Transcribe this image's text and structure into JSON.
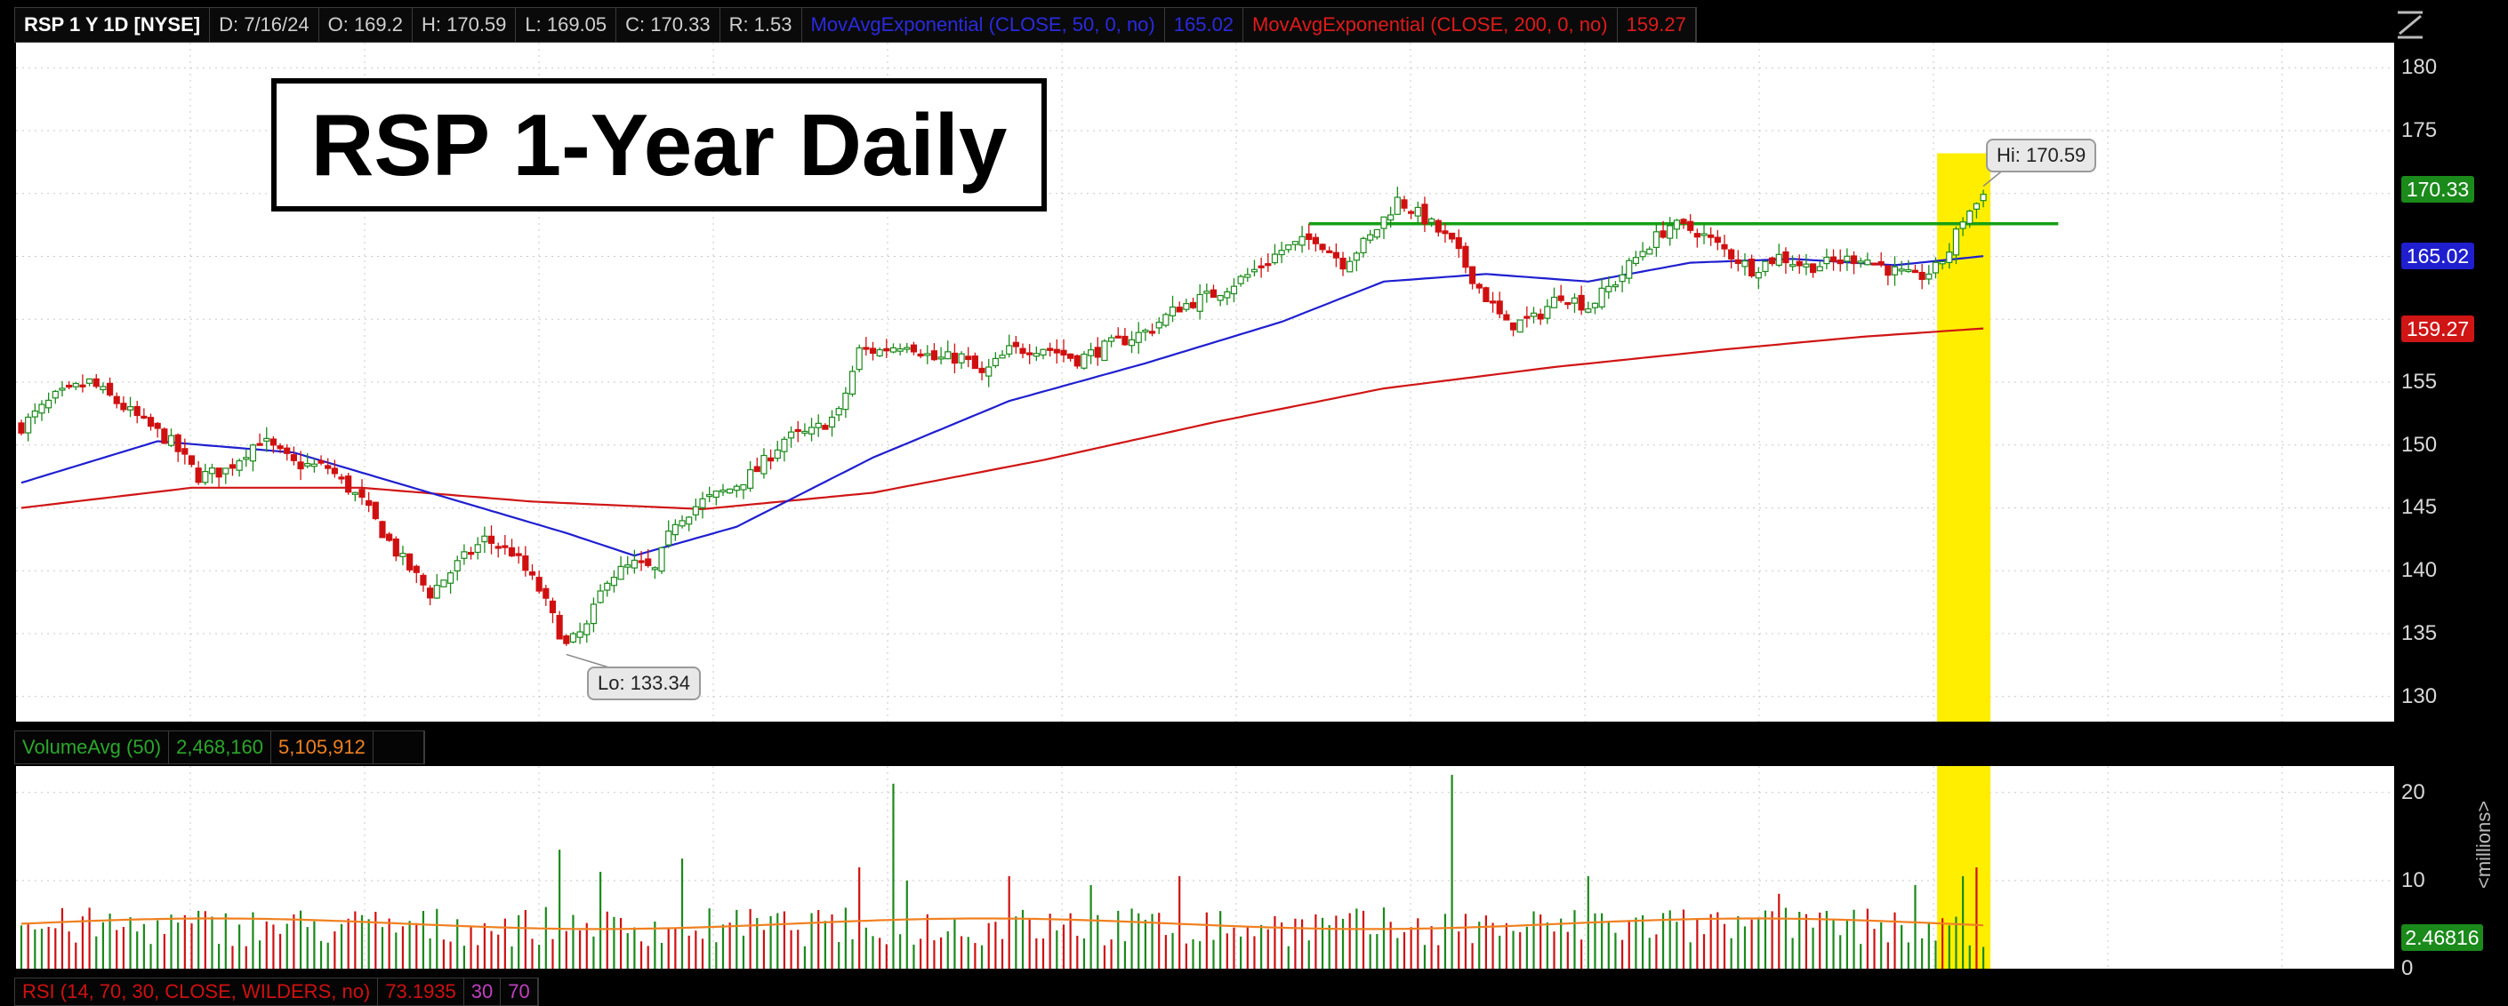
{
  "header": {
    "symbol": "RSP 1 Y 1D [NYSE]",
    "date": "D: 7/16/24",
    "open": "O: 169.2",
    "high": "H: 170.59",
    "low": "L: 169.05",
    "close": "C: 170.33",
    "range": "R: 1.53",
    "ema50_label": "MovAvgExponential (CLOSE, 50, 0, no)",
    "ema50_value": "165.02",
    "ema200_label": "MovAvgExponential (CLOSE, 200, 0, no)",
    "ema200_value": "159.27"
  },
  "title_box": "RSP 1-Year Daily",
  "annotations": {
    "hi": "Hi: 170.59",
    "lo": "Lo: 133.34"
  },
  "price_axis": {
    "ticks": [
      "180",
      "175",
      "170",
      "165",
      "155",
      "150",
      "145",
      "140",
      "135",
      "130"
    ],
    "tags": {
      "close": "170.33",
      "ema50": "165.02",
      "ema200": "159.27"
    }
  },
  "volume_header": {
    "label": "VolumeAvg (50)",
    "volume": "2,468,160",
    "avg": "5,105,912"
  },
  "volume_axis": {
    "ticks": [
      "20",
      "10",
      "0"
    ],
    "tag": "2.46816",
    "unit": "<millions>"
  },
  "rsi_header": {
    "label": "RSI (14, 70, 30, CLOSE, WILDERS, no)",
    "value": "73.1935",
    "oversold": "30",
    "overbought": "70"
  },
  "colors": {
    "up": "#1a8a1a",
    "down": "#d01010",
    "ema50": "#1f1fd0",
    "ema200": "#d01515",
    "resistance": "#14a014",
    "highlight": "#ffee00",
    "vol_avg": "#f08020"
  },
  "chart_data": [
    {
      "type": "candlestick",
      "title": "RSP 1-Year Daily",
      "ylim": [
        128,
        182
      ],
      "grid": true,
      "close_path": [
        {
          "i": 0,
          "c": 151.5
        },
        {
          "i": 5,
          "c": 153.8
        },
        {
          "i": 10,
          "c": 155.0
        },
        {
          "i": 12,
          "c": 154.2
        },
        {
          "i": 16,
          "c": 152.6
        },
        {
          "i": 22,
          "c": 150.2
        },
        {
          "i": 26,
          "c": 147.5
        },
        {
          "i": 30,
          "c": 148.0
        },
        {
          "i": 35,
          "c": 150.5
        },
        {
          "i": 40,
          "c": 148.5
        },
        {
          "i": 45,
          "c": 148.2
        },
        {
          "i": 50,
          "c": 145.5
        },
        {
          "i": 55,
          "c": 141.5
        },
        {
          "i": 60,
          "c": 138.2
        },
        {
          "i": 64,
          "c": 140.5
        },
        {
          "i": 68,
          "c": 142.5
        },
        {
          "i": 72,
          "c": 141.5
        },
        {
          "i": 76,
          "c": 138.5
        },
        {
          "i": 80,
          "c": 134.0
        },
        {
          "i": 83,
          "c": 135.5
        },
        {
          "i": 86,
          "c": 139.5
        },
        {
          "i": 90,
          "c": 140.5
        },
        {
          "i": 93,
          "c": 140.0
        },
        {
          "i": 96,
          "c": 144.0
        },
        {
          "i": 100,
          "c": 145.5
        },
        {
          "i": 104,
          "c": 146.5
        },
        {
          "i": 108,
          "c": 148.0
        },
        {
          "i": 112,
          "c": 150.5
        },
        {
          "i": 116,
          "c": 151.0
        },
        {
          "i": 120,
          "c": 152.5
        },
        {
          "i": 123,
          "c": 157.5
        },
        {
          "i": 126,
          "c": 157.5
        },
        {
          "i": 130,
          "c": 158.2
        },
        {
          "i": 134,
          "c": 156.8
        },
        {
          "i": 138,
          "c": 157.0
        },
        {
          "i": 141,
          "c": 155.5
        },
        {
          "i": 145,
          "c": 157.5
        },
        {
          "i": 150,
          "c": 157.8
        },
        {
          "i": 155,
          "c": 156.8
        },
        {
          "i": 160,
          "c": 158.0
        },
        {
          "i": 165,
          "c": 159.0
        },
        {
          "i": 170,
          "c": 161.0
        },
        {
          "i": 175,
          "c": 162.0
        },
        {
          "i": 180,
          "c": 163.5
        },
        {
          "i": 185,
          "c": 165.5
        },
        {
          "i": 190,
          "c": 166.5
        },
        {
          "i": 194,
          "c": 164.5
        },
        {
          "i": 198,
          "c": 166.5
        },
        {
          "i": 202,
          "c": 169.5
        },
        {
          "i": 206,
          "c": 168.0
        },
        {
          "i": 210,
          "c": 166.0
        },
        {
          "i": 214,
          "c": 162.5
        },
        {
          "i": 218,
          "c": 159.5
        },
        {
          "i": 222,
          "c": 160.0
        },
        {
          "i": 226,
          "c": 162.0
        },
        {
          "i": 230,
          "c": 161.0
        },
        {
          "i": 234,
          "c": 163.0
        },
        {
          "i": 238,
          "c": 165.5
        },
        {
          "i": 242,
          "c": 167.5
        },
        {
          "i": 246,
          "c": 167.0
        },
        {
          "i": 250,
          "c": 165.5
        },
        {
          "i": 254,
          "c": 164.0
        },
        {
          "i": 258,
          "c": 165.0
        },
        {
          "i": 262,
          "c": 164.2
        },
        {
          "i": 266,
          "c": 164.5
        },
        {
          "i": 270,
          "c": 165.0
        },
        {
          "i": 274,
          "c": 164.0
        },
        {
          "i": 278,
          "c": 163.2
        },
        {
          "i": 281,
          "c": 164.0
        },
        {
          "i": 283,
          "c": 165.5
        },
        {
          "i": 285,
          "c": 168.0
        },
        {
          "i": 287,
          "c": 169.2
        },
        {
          "i": 288,
          "c": 170.33
        }
      ],
      "ema50": [
        {
          "i": 0,
          "v": 147.0
        },
        {
          "i": 20,
          "v": 150.3
        },
        {
          "i": 40,
          "v": 149.4
        },
        {
          "i": 60,
          "v": 146.2
        },
        {
          "i": 80,
          "v": 143.0
        },
        {
          "i": 90,
          "v": 141.2
        },
        {
          "i": 105,
          "v": 143.5
        },
        {
          "i": 125,
          "v": 149.0
        },
        {
          "i": 145,
          "v": 153.5
        },
        {
          "i": 165,
          "v": 156.5
        },
        {
          "i": 185,
          "v": 159.8
        },
        {
          "i": 200,
          "v": 163.0
        },
        {
          "i": 215,
          "v": 163.6
        },
        {
          "i": 230,
          "v": 163.0
        },
        {
          "i": 245,
          "v": 164.5
        },
        {
          "i": 260,
          "v": 164.8
        },
        {
          "i": 275,
          "v": 164.3
        },
        {
          "i": 288,
          "v": 165.02
        }
      ],
      "ema200": [
        {
          "i": 0,
          "v": 145.0
        },
        {
          "i": 25,
          "v": 146.6
        },
        {
          "i": 50,
          "v": 146.6
        },
        {
          "i": 75,
          "v": 145.5
        },
        {
          "i": 100,
          "v": 144.9
        },
        {
          "i": 125,
          "v": 146.2
        },
        {
          "i": 150,
          "v": 148.8
        },
        {
          "i": 175,
          "v": 151.8
        },
        {
          "i": 200,
          "v": 154.5
        },
        {
          "i": 225,
          "v": 156.2
        },
        {
          "i": 250,
          "v": 157.6
        },
        {
          "i": 270,
          "v": 158.6
        },
        {
          "i": 288,
          "v": 159.27
        }
      ],
      "resistance_level": 167.6,
      "highlight_bars": [
        282,
        288
      ]
    },
    {
      "type": "bar",
      "title": "VolumeAvg (50)",
      "ylim": [
        0,
        23
      ],
      "ylabel": "<millions>",
      "avg_level": 5.1,
      "spikes": [
        {
          "i": 79,
          "v": 13.5
        },
        {
          "i": 85,
          "v": 11.0
        },
        {
          "i": 97,
          "v": 12.5
        },
        {
          "i": 123,
          "v": 11.5
        },
        {
          "i": 128,
          "v": 21.0
        },
        {
          "i": 130,
          "v": 10.0
        },
        {
          "i": 145,
          "v": 10.5
        },
        {
          "i": 157,
          "v": 9.5
        },
        {
          "i": 170,
          "v": 10.5
        },
        {
          "i": 210,
          "v": 22.0
        },
        {
          "i": 230,
          "v": 10.5
        },
        {
          "i": 258,
          "v": 8.5
        },
        {
          "i": 278,
          "v": 9.5
        },
        {
          "i": 285,
          "v": 10.5
        },
        {
          "i": 287,
          "v": 11.5
        },
        {
          "i": 288,
          "v": 2.47
        }
      ]
    }
  ]
}
